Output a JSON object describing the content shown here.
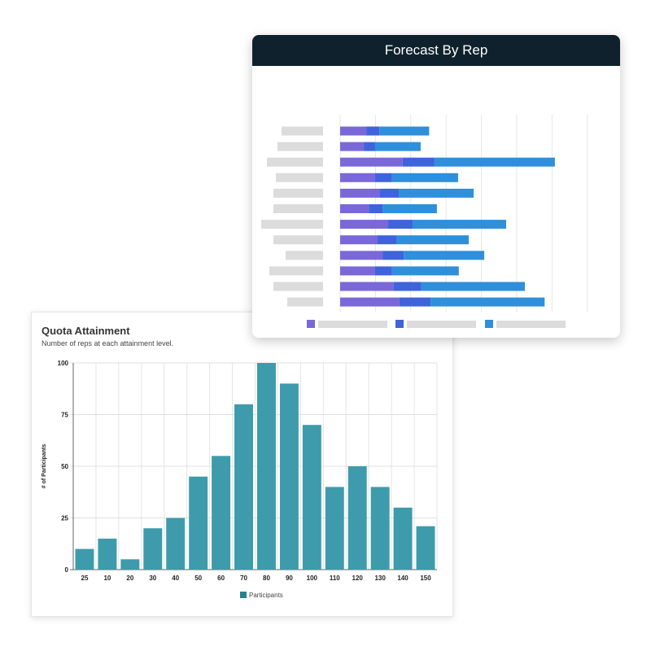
{
  "quota": {
    "title": "Quota Attainment",
    "subtitle": "Number of reps at each attainment level."
  },
  "forecast": {
    "title": "Forecast By Rep"
  },
  "chart_data": [
    {
      "type": "bar",
      "title": "Quota Attainment",
      "subtitle": "Number of reps at each attainment level.",
      "xlabel": "",
      "ylabel": "# of Participants",
      "categories": [
        "25",
        "10",
        "20",
        "30",
        "40",
        "50",
        "60",
        "70",
        "80",
        "90",
        "100",
        "110",
        "120",
        "130",
        "140",
        "150"
      ],
      "series": [
        {
          "name": "Participants",
          "values": [
            10,
            15,
            5,
            20,
            25,
            45,
            55,
            80,
            100,
            90,
            70,
            40,
            50,
            40,
            30,
            21
          ],
          "color": "#3d9bab"
        }
      ],
      "yticks": [
        "0",
        "25",
        "50",
        "75",
        "100"
      ],
      "ylim": [
        0,
        100
      ],
      "grid": true,
      "legend": "bottom",
      "legend_color": "#2a7f8c"
    },
    {
      "type": "bar",
      "orientation": "horizontal",
      "stacked": true,
      "title": "Forecast By Rep",
      "categories_hidden": true,
      "rows": 12,
      "series": [
        {
          "color": "#7b68d8",
          "values": [
            0.74,
            0.67,
            1.77,
            0.99,
            1.11,
            0.81,
            1.36,
            1.06,
            1.2,
            0.99,
            1.52,
            1.68
          ]
        },
        {
          "color": "#3f63db",
          "values": [
            0.37,
            0.32,
            0.9,
            0.48,
            0.55,
            0.39,
            0.69,
            0.53,
            0.6,
            0.48,
            0.78,
            0.88
          ]
        },
        {
          "color": "#2f8fdb",
          "values": [
            1.41,
            1.29,
            3.41,
            1.87,
            2.12,
            1.54,
            2.65,
            2.05,
            2.28,
            1.89,
            2.93,
            3.23
          ]
        }
      ],
      "xlim": [
        0,
        7
      ],
      "grid": true,
      "legend": "bottom",
      "placeholder_color": "#dcdcdc"
    }
  ]
}
